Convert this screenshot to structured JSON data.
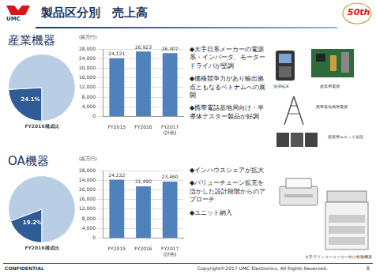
{
  "header": {
    "logo": "UMC",
    "title": "製品区分別　売上高",
    "badge": "50th"
  },
  "sections": [
    {
      "label": "産業機器",
      "bullets": [
        "◆大手日系メーカーの電源系・インバータ、モータードライバが堅調",
        "◆価格競争力があり輸出拠点ともなるベトナムへの展開",
        "◆携帯電話基地局向け・半導体テスター製品が好調"
      ],
      "image_captions": [
        "決済端末",
        "産業用電源",
        "携帯基地局用電源",
        "産業用ユニット製品"
      ]
    },
    {
      "label": "OA機器",
      "bullets": [
        "◆インハウスシェアが拡大",
        "◆バリューチェーン拡充を活かした設計段階からのアプローチ",
        "◆ユニット納入"
      ],
      "image_captions": [
        "大手プリンターメーカー向け各種機器"
      ]
    }
  ],
  "chart_data": [
    {
      "type": "pie",
      "title": "FY2016構成比",
      "values": [
        24.1,
        75.9
      ],
      "colors": [
        "#2f5b96",
        "#b9cde5"
      ],
      "data_labels": true,
      "value_labels": [
        "24.1%",
        null
      ]
    },
    {
      "type": "bar",
      "y_label": "(百万円)",
      "categories": [
        "FY2015",
        "FY2016",
        "FY2017\n(計画)"
      ],
      "values": [
        24121,
        26923,
        26307
      ],
      "value_labels": [
        "24,121",
        "26,923",
        "26,307"
      ],
      "color": "#4f81bd",
      "ylim": [
        0,
        28000
      ],
      "yticks": [
        0,
        {
          "value": 4000,
          "label": "4,000"
        },
        {
          "value": 8000,
          "label": "8,000"
        },
        {
          "value": 12000,
          "label": "12,000"
        },
        {
          "value": 16000,
          "label": "16,000"
        },
        {
          "value": 20000,
          "label": "20,000"
        },
        {
          "value": 24000,
          "label": "24,000"
        },
        {
          "value": 28000,
          "label": "28,000"
        }
      ],
      "grid": true,
      "data_labels": true
    },
    {
      "type": "pie",
      "title": "FY2016構成比",
      "values": [
        19.2,
        80.8
      ],
      "colors": [
        "#2f5b96",
        "#b9cde5"
      ],
      "data_labels": true,
      "value_labels": [
        "19.2%",
        null
      ]
    },
    {
      "type": "bar",
      "y_label": "(百万円)",
      "categories": [
        "FY2015",
        "FY2016",
        "FY2017\n(計画)"
      ],
      "values": [
        24222,
        21490,
        23460
      ],
      "value_labels": [
        "24,222",
        "21,490",
        "23,460"
      ],
      "color": "#4f81bd",
      "ylim": [
        0,
        28000
      ],
      "yticks": [
        0,
        {
          "value": 4000,
          "label": "4,000"
        },
        {
          "value": 8000,
          "label": "8,000"
        },
        {
          "value": 12000,
          "label": "12,000"
        },
        {
          "value": 16000,
          "label": "16,000"
        },
        {
          "value": 20000,
          "label": "20,000"
        },
        {
          "value": 24000,
          "label": "24,000"
        },
        {
          "value": 28000,
          "label": "28,000"
        }
      ],
      "grid": true,
      "data_labels": true
    }
  ],
  "footer": {
    "left": "CONFIDENTIAL",
    "right": "Copyright©2017 UMC Electronics, All Rights Reserved.",
    "page": "8"
  }
}
